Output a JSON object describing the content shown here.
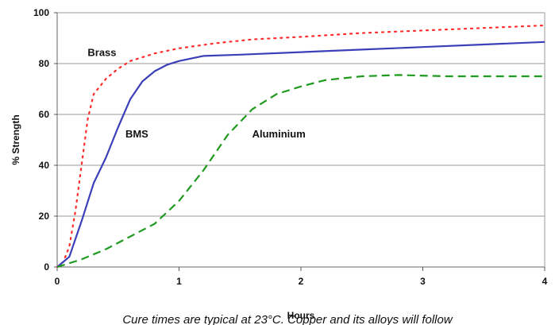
{
  "chart_data": {
    "type": "line",
    "title": "",
    "xlabel": "Hours",
    "ylabel": "% Strength",
    "xlim": [
      0,
      4
    ],
    "ylim": [
      0,
      100
    ],
    "x_ticks": [
      "0",
      "1",
      "2",
      "3",
      "4"
    ],
    "y_ticks": [
      "0",
      "20",
      "40",
      "60",
      "80",
      "100"
    ],
    "grid": "horizontal",
    "caption": "Cure times are typical at 23°C. Copper and its alloys will follow",
    "series": [
      {
        "name": "Brass",
        "color": "#ff2a2a",
        "style": "dotted",
        "points": [
          [
            0,
            0
          ],
          [
            0.05,
            2
          ],
          [
            0.1,
            8
          ],
          [
            0.15,
            22
          ],
          [
            0.2,
            40
          ],
          [
            0.25,
            58
          ],
          [
            0.3,
            68
          ],
          [
            0.4,
            74
          ],
          [
            0.5,
            78
          ],
          [
            0.6,
            81
          ],
          [
            0.8,
            84
          ],
          [
            1.0,
            86
          ],
          [
            1.3,
            88
          ],
          [
            1.6,
            89.5
          ],
          [
            2.0,
            90.5
          ],
          [
            2.5,
            92
          ],
          [
            3.0,
            93
          ],
          [
            3.5,
            94
          ],
          [
            4.0,
            95
          ]
        ]
      },
      {
        "name": "BMS",
        "color": "#3b3fb8",
        "style": "solid",
        "points": [
          [
            0,
            0
          ],
          [
            0.1,
            4
          ],
          [
            0.2,
            18
          ],
          [
            0.3,
            33
          ],
          [
            0.4,
            43
          ],
          [
            0.5,
            55
          ],
          [
            0.6,
            66
          ],
          [
            0.7,
            73
          ],
          [
            0.8,
            77
          ],
          [
            0.9,
            79.5
          ],
          [
            1.0,
            81
          ],
          [
            1.2,
            83
          ],
          [
            1.5,
            83.5
          ],
          [
            2.0,
            84.5
          ],
          [
            2.5,
            85.5
          ],
          [
            3.0,
            86.5
          ],
          [
            3.5,
            87.5
          ],
          [
            4.0,
            88.5
          ]
        ]
      },
      {
        "name": "Aluminium",
        "color": "#1f9a1f",
        "style": "dashed",
        "points": [
          [
            0,
            0
          ],
          [
            0.2,
            3
          ],
          [
            0.4,
            7
          ],
          [
            0.6,
            12
          ],
          [
            0.8,
            17
          ],
          [
            1.0,
            26
          ],
          [
            1.2,
            38
          ],
          [
            1.4,
            52
          ],
          [
            1.6,
            62
          ],
          [
            1.8,
            68
          ],
          [
            2.0,
            71
          ],
          [
            2.2,
            73.5
          ],
          [
            2.5,
            75
          ],
          [
            2.8,
            75.5
          ],
          [
            3.2,
            75
          ],
          [
            4.0,
            75
          ]
        ]
      }
    ],
    "labels": [
      {
        "text": "Brass",
        "x": 0.25,
        "y": 83
      },
      {
        "text": "BMS",
        "x": 0.56,
        "y": 51
      },
      {
        "text": "Aluminium",
        "x": 1.6,
        "y": 51
      }
    ]
  }
}
